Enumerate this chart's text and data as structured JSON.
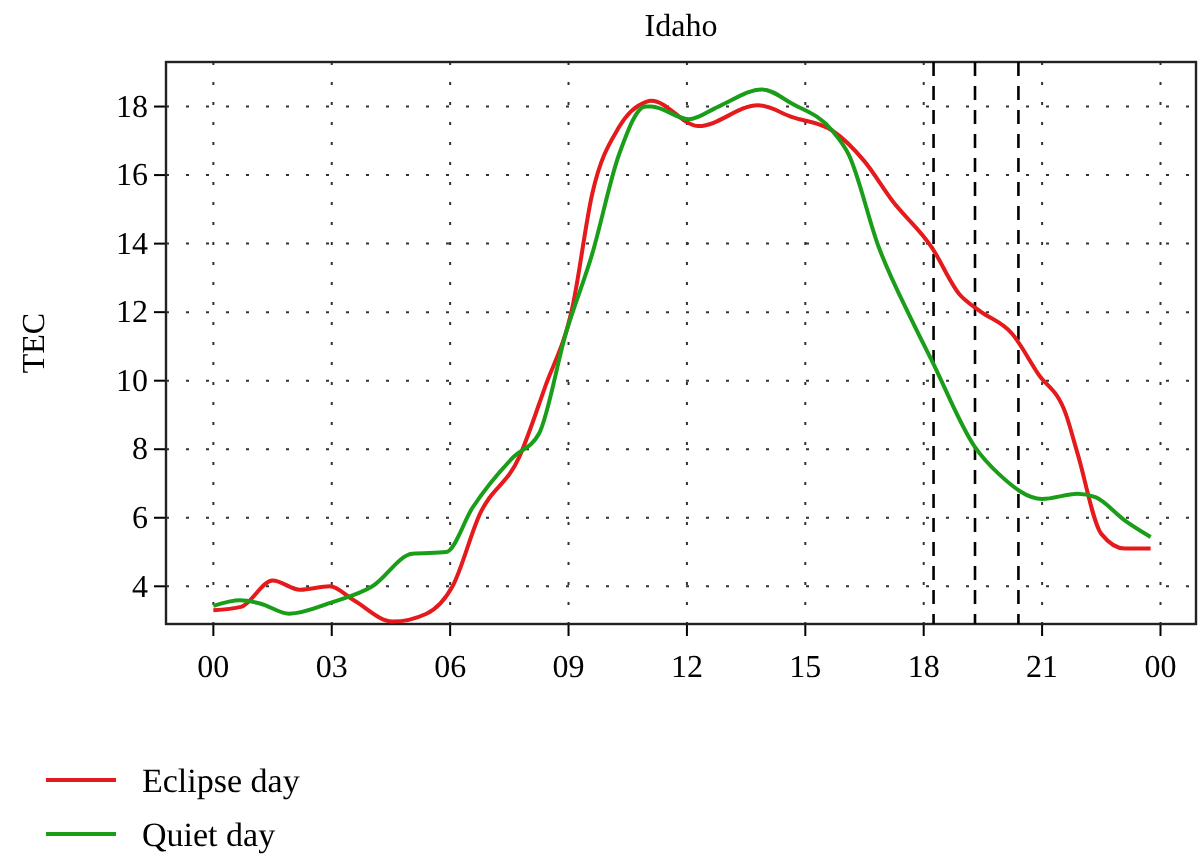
{
  "chart_data": {
    "type": "line",
    "title": "Idaho",
    "ylabel": "TEC",
    "xlim": [
      -1.2,
      24.9
    ],
    "ylim": [
      2.9,
      19.3
    ],
    "xticks": [
      {
        "value": 0,
        "label": "00"
      },
      {
        "value": 3,
        "label": "03"
      },
      {
        "value": 6,
        "label": "06"
      },
      {
        "value": 9,
        "label": "09"
      },
      12,
      15,
      18,
      21,
      {
        "value": 24,
        "label": "00"
      }
    ],
    "yticks": [
      4,
      6,
      8,
      10,
      12,
      14,
      16,
      18
    ],
    "grid": true,
    "legend": "bottom left",
    "line_style": "solid",
    "marker": "none",
    "ref_lines": [
      {
        "axis": "x",
        "value": 18.25,
        "color": "#000000",
        "line_style": "dashed"
      },
      {
        "axis": "x",
        "value": 19.3,
        "color": "#000000",
        "line_style": "dashed"
      },
      {
        "axis": "x",
        "value": 20.4,
        "color": "#000000",
        "line_style": "dashed"
      }
    ],
    "series": [
      {
        "name": "Eclipse day",
        "color": "#e41a1c",
        "x": [
          0,
          0.7,
          1.5,
          2.2,
          2.95,
          3.55,
          4.54,
          5.4,
          6.06,
          6.75,
          7.75,
          8.4,
          9.1,
          9.6,
          10.28,
          10.95,
          11.1,
          12.3,
          13.8,
          14.67,
          15.68,
          16.5,
          17.2,
          18.2,
          18.9,
          19.4,
          20.24,
          20.9,
          21.6,
          21.9,
          22.5,
          23.1,
          23.75
        ],
        "values": [
          3.3,
          3.4,
          4.17,
          3.9,
          4.0,
          3.6,
          2.97,
          3.2,
          4.0,
          6.1,
          7.77,
          9.8,
          12.15,
          15.45,
          17.4,
          18.13,
          18.17,
          17.43,
          18.04,
          17.69,
          17.3,
          16.4,
          15.26,
          13.9,
          12.53,
          12.05,
          11.37,
          10.2,
          9.03,
          7.87,
          5.53,
          5.1,
          5.1
        ]
      },
      {
        "name": "Quiet day",
        "color": "#1a9e1a",
        "x": [
          0,
          0.68,
          1.18,
          1.92,
          3.0,
          4.03,
          5.04,
          5.9,
          6.57,
          7.6,
          8.25,
          8.93,
          9.6,
          10.28,
          10.95,
          11.1,
          12.05,
          12.8,
          13.9,
          14.67,
          15.68,
          16.1,
          16.86,
          17.7,
          18.2,
          19.3,
          19.9,
          21.0,
          21.9,
          22.35,
          23.1,
          23.75
        ],
        "values": [
          3.43,
          3.59,
          3.5,
          3.2,
          3.53,
          4.0,
          4.95,
          5.0,
          6.3,
          7.77,
          8.45,
          11.37,
          13.7,
          16.6,
          18.0,
          18.0,
          17.63,
          18.0,
          18.5,
          18.08,
          17.3,
          16.6,
          13.9,
          11.76,
          10.6,
          8.06,
          7.28,
          6.55,
          6.7,
          6.6,
          5.92,
          5.44
        ]
      }
    ]
  }
}
